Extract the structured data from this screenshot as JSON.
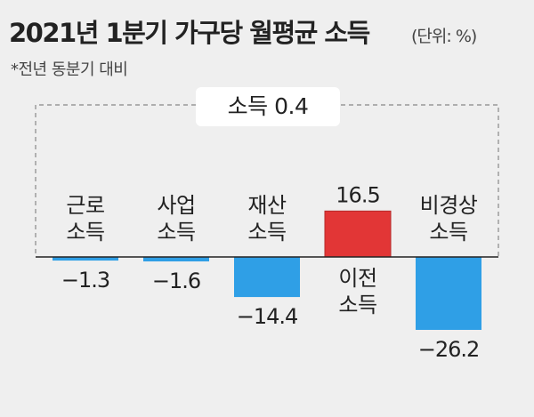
{
  "chart_data": {
    "type": "bar",
    "title": "2021년 1분기 가구당 월평균 소득",
    "unit": "(단위: %)",
    "subtitle": "*전년 동분기 대비",
    "total_label": "소득 0.4",
    "categories": [
      [
        "근로",
        "소득"
      ],
      [
        "사업",
        "소득"
      ],
      [
        "재산",
        "소득"
      ],
      [
        "이전",
        "소득"
      ],
      [
        "비경상",
        "소득"
      ]
    ],
    "values": [
      -1.3,
      -1.6,
      -14.4,
      16.5,
      -26.2
    ],
    "value_labels": [
      "−1.3",
      "−1.6",
      "−14.4",
      "16.5",
      "−26.2"
    ],
    "colors": {
      "positive": "#e23636",
      "negative": "#2f9fe6",
      "baseline": "#222222",
      "dashed_box": "#888888"
    }
  }
}
